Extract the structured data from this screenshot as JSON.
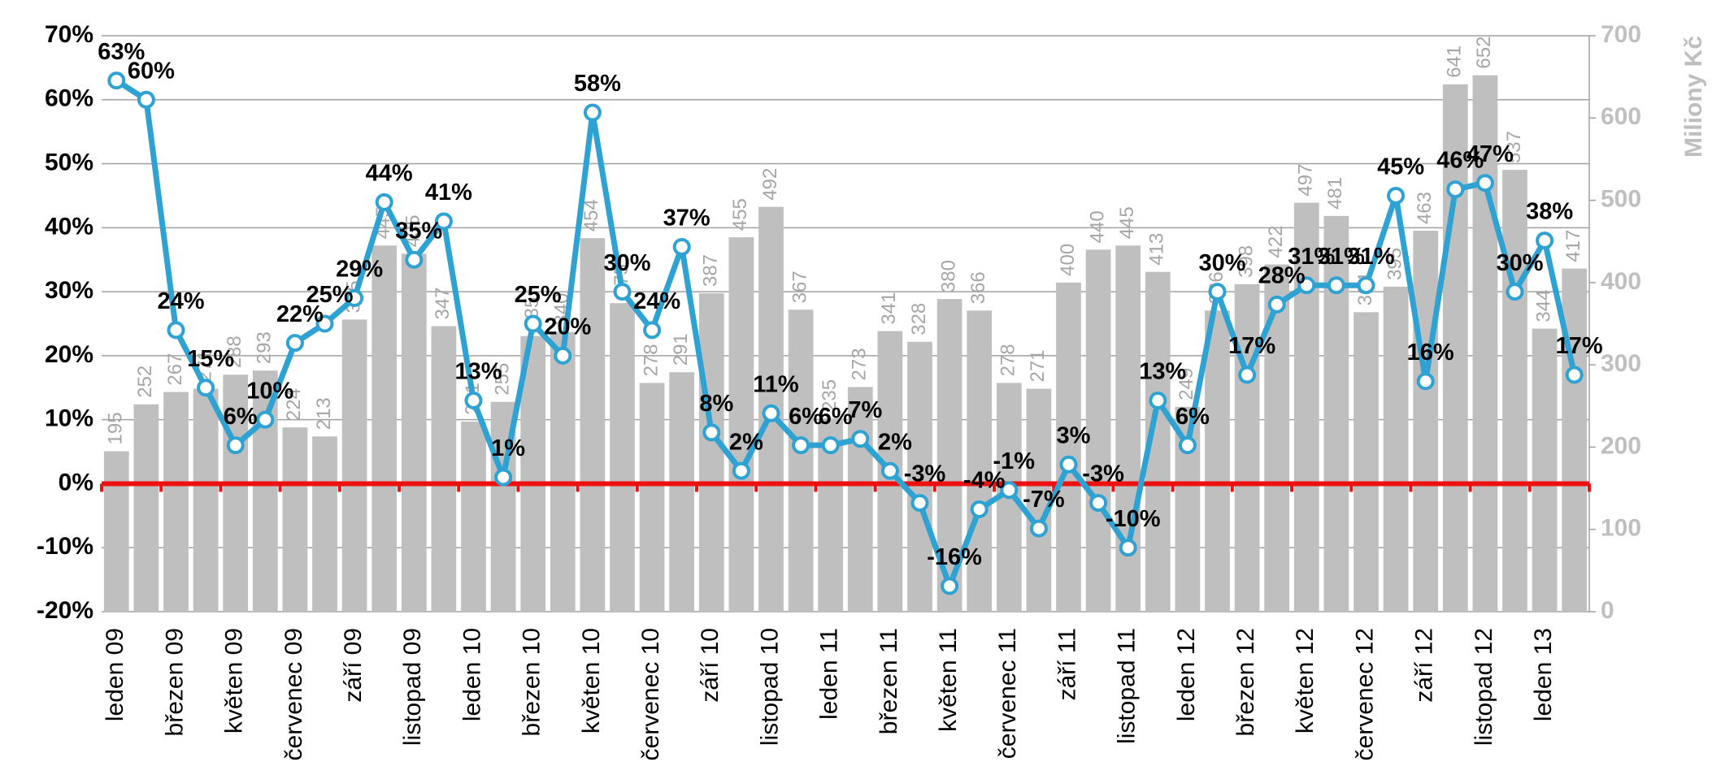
{
  "chart_data": {
    "type": "combo",
    "y2_label": "Miliony Kč",
    "categories": [
      "leden 09",
      null,
      "březen 09",
      null,
      "květen 09",
      null,
      "červenec 09",
      null,
      "září 09",
      null,
      "listopad 09",
      null,
      "leden 10",
      null,
      "březen 10",
      null,
      "květen 10",
      null,
      "červenec 10",
      null,
      "září 10",
      null,
      "listopad 10",
      null,
      "leden 11",
      null,
      "březen 11",
      null,
      "květen 11",
      null,
      "červenec 11",
      null,
      "září 11",
      null,
      "listopad 11",
      null,
      "leden 12",
      null,
      "březen 12",
      null,
      "květen 12",
      null,
      "červenec 12",
      null,
      "září 12",
      null,
      "listopad 12",
      null,
      "leden 13",
      null
    ],
    "series": [
      {
        "type": "bar",
        "axis": "y2",
        "color": "#bfbfbf",
        "label_color": "#a6a6a6",
        "values": [
          195,
          252,
          267,
          271,
          288,
          293,
          224,
          213,
          355,
          445,
          435,
          347,
          231,
          255,
          335,
          340,
          454,
          375,
          278,
          291,
          387,
          455,
          492,
          367,
          235,
          273,
          341,
          328,
          380,
          366,
          278,
          271,
          400,
          440,
          445,
          413,
          249,
          366,
          398,
          422,
          497,
          481,
          364,
          395,
          463,
          641,
          652,
          537,
          344,
          417
        ]
      },
      {
        "type": "line",
        "axis": "y",
        "color": "#2ea3d3",
        "values": [
          63,
          60,
          24,
          15,
          6,
          10,
          22,
          25,
          29,
          44,
          35,
          41,
          13,
          1,
          25,
          20,
          58,
          30,
          24,
          37,
          8,
          2,
          11,
          6,
          6,
          7,
          2,
          -3,
          -16,
          -4,
          -1,
          -7,
          3,
          -3,
          -10,
          13,
          6,
          30,
          17,
          28,
          31,
          31,
          31,
          45,
          16,
          46,
          47,
          30,
          38,
          17
        ],
        "value_labels": [
          "63%",
          "60%",
          "24%",
          "15%",
          "6%",
          "10%",
          "22%",
          "25%",
          "29%",
          "44%",
          "35%",
          "41%",
          "13%",
          "1%",
          "25%",
          "20%",
          "58%",
          "30%",
          "24%",
          "37%",
          "8%",
          "2%",
          "11%",
          "6%",
          "6%",
          "7%",
          "2%",
          "-3%",
          "-16%",
          "-4%",
          "-1%",
          "-7%",
          "3%",
          "-3%",
          "-10%",
          "13%",
          "6%",
          "30%",
          "17%",
          "28%",
          "31%",
          "31%",
          "31%",
          "45%",
          "16%",
          "46%",
          "47%",
          "30%",
          "38%",
          "17%"
        ]
      }
    ],
    "ylim": [
      -20,
      70
    ],
    "yticks": [
      {
        "value": -20,
        "label": "-20%"
      },
      {
        "value": -10,
        "label": "-10%"
      },
      {
        "value": 0,
        "label": "0%"
      },
      {
        "value": 10,
        "label": "10%"
      },
      {
        "value": 20,
        "label": "20%"
      },
      {
        "value": 30,
        "label": "30%"
      },
      {
        "value": 40,
        "label": "40%"
      },
      {
        "value": 50,
        "label": "50%"
      },
      {
        "value": 60,
        "label": "60%"
      },
      {
        "value": 70,
        "label": "70%"
      }
    ],
    "y2lim": [
      0,
      700
    ],
    "y2ticks": [
      0,
      100,
      200,
      300,
      400,
      500,
      600,
      700
    ],
    "grid": true,
    "reference_line": {
      "value": 0,
      "color": "#ee1111"
    }
  }
}
